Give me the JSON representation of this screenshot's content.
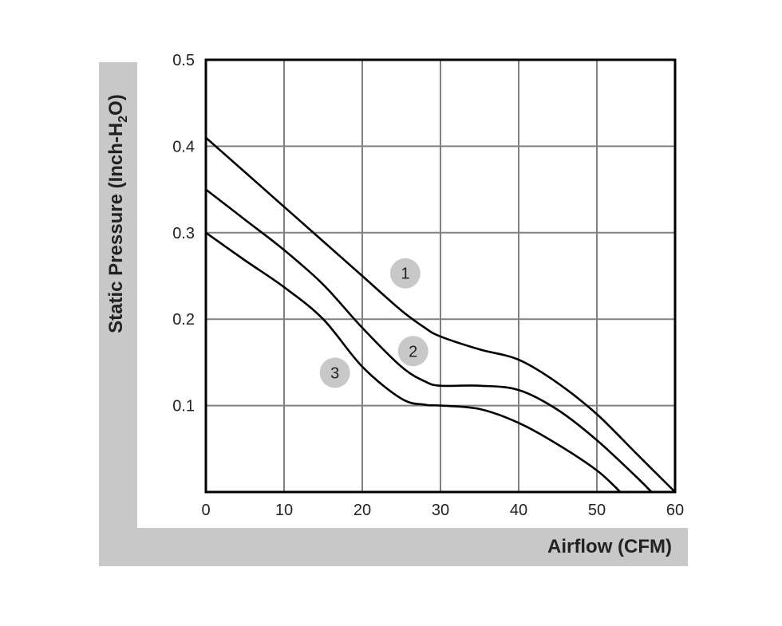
{
  "chart_data": {
    "type": "line",
    "xlabel": "Airflow (CFM)",
    "ylabel_main": "Static Pressure (Inch-H",
    "ylabel_sub": "2",
    "ylabel_tail": "O)",
    "xlim": [
      0,
      60
    ],
    "ylim": [
      0,
      0.5
    ],
    "xticks": [
      0,
      10,
      20,
      30,
      40,
      50,
      60
    ],
    "yticks": [
      0.1,
      0.2,
      0.3,
      0.4,
      0.5
    ],
    "xtick_labels": [
      "0",
      "10",
      "20",
      "30",
      "40",
      "50",
      "60"
    ],
    "ytick_labels": [
      "0.1",
      "0.2",
      "0.3",
      "0.4",
      "0.5"
    ],
    "grid": true,
    "series": [
      {
        "label": "1",
        "x": [
          0,
          5,
          10,
          15,
          20,
          25,
          28,
          30,
          35,
          40,
          45,
          50,
          55,
          60
        ],
        "y": [
          0.41,
          0.37,
          0.33,
          0.29,
          0.25,
          0.21,
          0.19,
          0.18,
          0.165,
          0.153,
          0.126,
          0.09,
          0.045,
          0.0
        ],
        "marker_at": [
          25.5,
          0.253
        ]
      },
      {
        "label": "2",
        "x": [
          0,
          5,
          10,
          15,
          20,
          25,
          28,
          30,
          35,
          40,
          45,
          50,
          55,
          57
        ],
        "y": [
          0.35,
          0.315,
          0.28,
          0.24,
          0.19,
          0.145,
          0.128,
          0.123,
          0.123,
          0.118,
          0.095,
          0.06,
          0.018,
          0.0
        ],
        "marker_at": [
          26.5,
          0.163
        ]
      },
      {
        "label": "3",
        "x": [
          0,
          5,
          10,
          15,
          20,
          25,
          28,
          30,
          35,
          40,
          45,
          50,
          53
        ],
        "y": [
          0.3,
          0.268,
          0.237,
          0.2,
          0.145,
          0.108,
          0.101,
          0.1,
          0.096,
          0.08,
          0.055,
          0.025,
          0.0
        ],
        "marker_at": [
          16.5,
          0.138
        ]
      }
    ],
    "colors": {
      "line": "#000000",
      "grid": "#808080",
      "badge": "#c8c8c8",
      "band": "#c8c8c8"
    }
  }
}
